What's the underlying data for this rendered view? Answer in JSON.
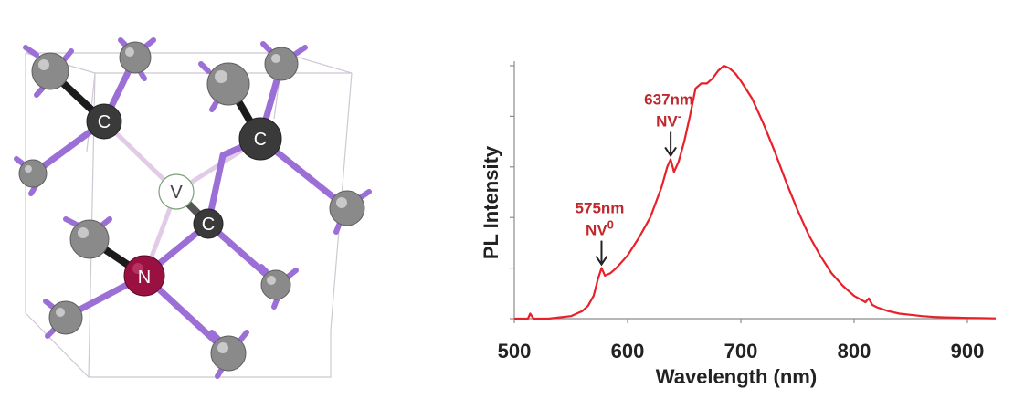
{
  "structure": {
    "atoms": {
      "carbon_top_left": "C",
      "carbon_top_right": "C",
      "carbon_center": "C",
      "vacancy": "V",
      "nitrogen": "N"
    },
    "colors": {
      "carbon": "#3a3a3a",
      "nitrogen": "#9a1040",
      "bond": "#9b6fd6",
      "hydrogen": "#8a8a8a",
      "cage": "#c9c3cc"
    }
  },
  "chart_data": {
    "type": "line",
    "title": "",
    "xlabel": "Wavelength (nm)",
    "ylabel": "PL Intensity",
    "xlim": [
      500,
      925
    ],
    "ylim": [
      0,
      1.0
    ],
    "xticks": [
      500,
      600,
      700,
      800,
      900
    ],
    "grid": false,
    "legend": "none",
    "series": [
      {
        "color": "#e8202a",
        "x": [
          500,
          512,
          514,
          517,
          520,
          530,
          540,
          550,
          560,
          565,
          570,
          574,
          577,
          580,
          585,
          590,
          600,
          610,
          620,
          630,
          635,
          638,
          641,
          645,
          650,
          655,
          660,
          665,
          670,
          675,
          680,
          685,
          690,
          695,
          700,
          710,
          720,
          730,
          740,
          750,
          760,
          770,
          780,
          790,
          800,
          810,
          813,
          816,
          820,
          830,
          840,
          850,
          860,
          870,
          880,
          890,
          900,
          910,
          925
        ],
        "values": [
          0.0,
          0.0,
          0.02,
          0.0,
          0.0,
          0.0,
          0.005,
          0.01,
          0.03,
          0.05,
          0.09,
          0.16,
          0.2,
          0.17,
          0.18,
          0.2,
          0.25,
          0.32,
          0.4,
          0.52,
          0.6,
          0.63,
          0.58,
          0.62,
          0.7,
          0.8,
          0.91,
          0.93,
          0.93,
          0.95,
          0.98,
          1.0,
          0.99,
          0.97,
          0.94,
          0.87,
          0.77,
          0.66,
          0.54,
          0.43,
          0.33,
          0.25,
          0.18,
          0.13,
          0.09,
          0.065,
          0.08,
          0.055,
          0.045,
          0.03,
          0.02,
          0.015,
          0.01,
          0.007,
          0.005,
          0.004,
          0.003,
          0.002,
          0.001
        ]
      }
    ],
    "annotations": [
      {
        "label": "575nm",
        "species": "NV",
        "superscript": "0",
        "x": 577,
        "y": 0.2
      },
      {
        "label": "637nm",
        "species": "NV",
        "superscript": "-",
        "x": 638,
        "y": 0.63
      }
    ]
  }
}
